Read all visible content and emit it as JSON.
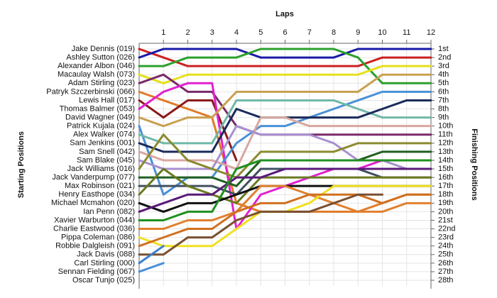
{
  "chart_data": {
    "type": "bump",
    "x_label": "Laps",
    "y_label": "Starting Positions",
    "y2_label": "Finishing Positions",
    "x": [
      0,
      1,
      2,
      3,
      4,
      5,
      6,
      7,
      8,
      9,
      10,
      11,
      12
    ],
    "xlim": [
      0,
      12
    ],
    "xticks": [
      1,
      2,
      3,
      4,
      5,
      6,
      7,
      8,
      9,
      10,
      11,
      12
    ],
    "ylim": [
      1,
      28
    ],
    "yticks": [
      {
        "value": 1,
        "label": "1st"
      },
      {
        "value": 2,
        "label": "2nd"
      },
      {
        "value": 3,
        "label": "3rd"
      },
      {
        "value": 4,
        "label": "4th"
      },
      {
        "value": 5,
        "label": "5th"
      },
      {
        "value": 6,
        "label": "6th"
      },
      {
        "value": 7,
        "label": "7th"
      },
      {
        "value": 8,
        "label": "8th"
      },
      {
        "value": 9,
        "label": "9th"
      },
      {
        "value": 10,
        "label": "10th"
      },
      {
        "value": 11,
        "label": "11th"
      },
      {
        "value": 12,
        "label": "12th"
      },
      {
        "value": 13,
        "label": "13th"
      },
      {
        "value": 14,
        "label": "14th"
      },
      {
        "value": 15,
        "label": "15th"
      },
      {
        "value": 16,
        "label": "16th"
      },
      {
        "value": 17,
        "label": "17th"
      },
      {
        "value": 18,
        "label": "18th"
      },
      {
        "value": 19,
        "label": "19th"
      },
      {
        "value": 20,
        "label": "20th"
      },
      {
        "value": 21,
        "label": "21st"
      },
      {
        "value": 22,
        "label": "22nd"
      },
      {
        "value": 23,
        "label": "23rd"
      },
      {
        "value": 24,
        "label": "24th"
      },
      {
        "value": 25,
        "label": "25th"
      },
      {
        "value": 26,
        "label": "26th"
      },
      {
        "value": 27,
        "label": "27th"
      },
      {
        "value": 28,
        "label": "28th"
      }
    ],
    "grid": true,
    "series": [
      {
        "name": "Jake Dennis (019)",
        "color": "#cc2020",
        "values": [
          1,
          2,
          3,
          3,
          3,
          3,
          3,
          3,
          3,
          3,
          2,
          2,
          2
        ]
      },
      {
        "name": "Ashley Sutton (026)",
        "color": "#1a1aa8",
        "values": [
          2,
          1,
          1,
          1,
          1,
          2,
          2,
          2,
          2,
          1,
          1,
          1,
          1
        ]
      },
      {
        "name": "Alexander Albon (046)",
        "color": "#2ca02c",
        "values": [
          3,
          3,
          2,
          2,
          2,
          1,
          1,
          1,
          1,
          2,
          5,
          5,
          5
        ]
      },
      {
        "name": "Macaulay Walsh (073)",
        "color": "#e6e01a",
        "values": [
          4,
          5,
          4,
          4,
          4,
          4,
          4,
          4,
          4,
          4,
          3,
          3,
          3
        ]
      },
      {
        "name": "Adam Stirling (023)",
        "color": "#7a2a6a",
        "values": [
          5,
          4,
          6,
          6,
          10,
          11,
          11,
          11,
          11,
          11,
          11,
          11,
          11
        ]
      },
      {
        "name": "Patryk Szczerbinski (066)",
        "color": "#e07b28",
        "values": [
          6,
          7,
          8,
          9,
          19,
          20,
          20,
          20,
          20,
          20,
          19,
          18,
          18
        ]
      },
      {
        "name": "Lewis Hall (017)",
        "color": "#8b1a1a",
        "values": [
          7,
          9,
          7,
          7,
          14,
          null,
          null,
          null,
          null,
          null,
          null,
          null,
          null
        ]
      },
      {
        "name": "Thomas Balmer (053)",
        "color": "#e020d0",
        "values": [
          8,
          6,
          5,
          5,
          22,
          18,
          17,
          16,
          15,
          15,
          14,
          14,
          14
        ]
      },
      {
        "name": "David Wagner (049)",
        "color": "#c8a050",
        "values": [
          9,
          10,
          9,
          9,
          6,
          6,
          6,
          6,
          6,
          6,
          4,
          4,
          4
        ]
      },
      {
        "name": "Patrick Kujala (024)",
        "color": "#4a90d8",
        "values": [
          10,
          18,
          16,
          16,
          12,
          10,
          10,
          9,
          8,
          7,
          6,
          6,
          6
        ]
      },
      {
        "name": "Alex Walker (074)",
        "color": "#70b8a8",
        "values": [
          11,
          12,
          12,
          12,
          7,
          7,
          7,
          7,
          7,
          8,
          9,
          9,
          9
        ]
      },
      {
        "name": "Sam Jenkins (001)",
        "color": "#1a2a5a",
        "values": [
          12,
          13,
          13,
          13,
          8,
          9,
          9,
          9,
          9,
          9,
          8,
          7,
          7
        ]
      },
      {
        "name": "Sam Snell (042)",
        "color": "#d8a8a0",
        "values": [
          13,
          14,
          14,
          14,
          15,
          9,
          9,
          10,
          10,
          10,
          10,
          10,
          10
        ]
      },
      {
        "name": "Sam Blake (045)",
        "color": "#a890d0",
        "values": [
          14,
          15,
          15,
          15,
          10,
          11,
          11,
          11,
          12,
          14,
          14,
          15,
          15
        ]
      },
      {
        "name": "Jack Williams (016)",
        "color": "#8a8a30",
        "values": [
          15,
          11,
          14,
          15,
          16,
          13,
          13,
          13,
          13,
          12,
          12,
          12,
          12
        ]
      },
      {
        "name": "Jack Vanderpump (077)",
        "color": "#206020",
        "values": [
          16,
          16,
          16,
          16,
          17,
          14,
          14,
          14,
          14,
          14,
          13,
          13,
          13
        ]
      },
      {
        "name": "Max Robinson (021)",
        "color": "#405060",
        "values": [
          17,
          17,
          17,
          17,
          18,
          15,
          15,
          15,
          15,
          15,
          16,
          16,
          16
        ]
      },
      {
        "name": "Henry Easthope (034)",
        "color": "#6a7a20",
        "values": [
          18,
          15,
          17,
          18,
          19,
          16,
          16,
          16,
          16,
          16,
          16,
          16,
          16
        ]
      },
      {
        "name": "Michael Mcmahon (020)",
        "color": "#101010",
        "values": [
          19,
          20,
          19,
          19,
          18,
          17,
          17,
          17,
          17,
          17,
          17,
          17,
          17
        ]
      },
      {
        "name": "Ian Penn (082)",
        "color": "#5a1a7a",
        "values": [
          20,
          19,
          18,
          18,
          16,
          16,
          15,
          15,
          15,
          15,
          15,
          15,
          15
        ]
      },
      {
        "name": "Xavier Warburton (044)",
        "color": "#209020",
        "values": [
          21,
          21,
          20,
          20,
          15,
          14,
          14,
          14,
          14,
          14,
          14,
          14,
          14
        ]
      },
      {
        "name": "Charlie Eastwood (036)",
        "color": "#e08030",
        "values": [
          22,
          22,
          21,
          21,
          20,
          17,
          17,
          18,
          19,
          20,
          20,
          19,
          19
        ]
      },
      {
        "name": "Pippa Coleman (086)",
        "color": "#f0e020",
        "values": [
          23,
          24,
          24,
          24,
          22,
          20,
          20,
          19,
          17,
          17,
          17,
          17,
          17
        ]
      },
      {
        "name": "Robbie Dalgleish (091)",
        "color": "#d07020",
        "values": [
          24,
          23,
          22,
          22,
          20,
          19,
          19,
          18,
          18,
          18,
          19,
          18,
          18
        ]
      },
      {
        "name": "Jack Davis (088)",
        "color": "#7a5030",
        "values": [
          25,
          25,
          23,
          23,
          21,
          20,
          20,
          20,
          19,
          18,
          18,
          null,
          null
        ]
      },
      {
        "name": "Carl Stirling (000)",
        "color": "#3a80d0",
        "values": [
          26,
          24,
          null,
          null,
          null,
          null,
          null,
          null,
          null,
          null,
          null,
          null,
          null
        ]
      },
      {
        "name": "Sennan Fielding (067)",
        "color": "#4a90d8",
        "values": [
          27,
          26,
          null,
          null,
          null,
          null,
          null,
          null,
          null,
          null,
          null,
          null,
          null
        ]
      },
      {
        "name": "Oscar Tunjo (025)",
        "color": "#999999",
        "values": [
          28,
          null,
          null,
          null,
          null,
          null,
          null,
          null,
          null,
          null,
          null,
          null,
          null
        ]
      }
    ]
  }
}
